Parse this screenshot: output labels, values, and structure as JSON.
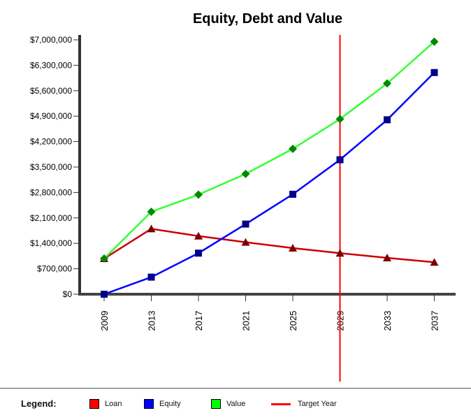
{
  "chart_data": {
    "type": "line",
    "title": "Equity, Debt and Value",
    "categories": [
      "2009",
      "2013",
      "2017",
      "2021",
      "2025",
      "2029",
      "2033",
      "2037"
    ],
    "y_ticks": [
      "$0",
      "$700,000",
      "$1,400,000",
      "$2,100,000",
      "$2,800,000",
      "$3,500,000",
      "$4,200,000",
      "$4,900,000",
      "$5,600,000",
      "$6,300,000",
      "$7,000,000"
    ],
    "ylim": [
      0,
      7000000
    ],
    "grid": false,
    "series": [
      {
        "name": "Loan",
        "color": "#cc0000",
        "marker_color": "#7a0000",
        "marker": "triangle",
        "values": [
          980000,
          1800000,
          1600000,
          1430000,
          1270000,
          1130000,
          1000000,
          880000
        ]
      },
      {
        "name": "Equity",
        "color": "#0000ff",
        "marker_color": "#00008b",
        "marker": "square",
        "values": [
          0,
          470000,
          1130000,
          1930000,
          2750000,
          3700000,
          4800000,
          6100000
        ]
      },
      {
        "name": "Value",
        "color": "#33ff33",
        "marker_color": "#008800",
        "marker": "diamond",
        "values": [
          980000,
          2270000,
          2740000,
          3310000,
          4000000,
          4820000,
          5800000,
          6950000
        ]
      }
    ],
    "target_year": {
      "name": "Target Year",
      "x": "2029",
      "color": "#ff0000"
    }
  },
  "legend": {
    "title": "Legend:",
    "items": [
      {
        "label": "Loan",
        "color": "#ff0000",
        "kind": "swatch"
      },
      {
        "label": "Equity",
        "color": "#0000ff",
        "kind": "swatch"
      },
      {
        "label": "Value",
        "color": "#00ff00",
        "kind": "swatch"
      },
      {
        "label": "Target Year",
        "color": "#ff0000",
        "kind": "line"
      }
    ]
  }
}
